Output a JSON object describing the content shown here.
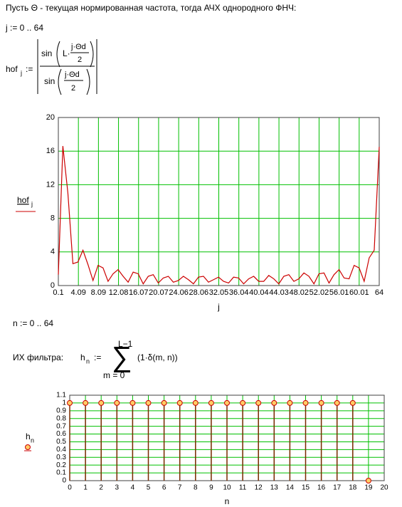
{
  "header": {
    "text": "Пусть Θ - текущая нормированная частота, тогда АЧХ однородного ФНЧ:"
  },
  "range_j": "j := 0 .. 64",
  "formula_hof": {
    "lhs": "hof",
    "lhs_sub": "j",
    "assign": ":=",
    "num_fn": "sin",
    "num_arg_left": "L·",
    "num_frac_top": "j·Θd",
    "num_frac_bottom": "2",
    "den_fn": "sin",
    "den_frac_top": "j·Θd",
    "den_frac_bottom": "2"
  },
  "range_n": "n := 0 .. 64",
  "ir_label": "ИХ фильтра:",
  "formula_h": {
    "lhs": "h",
    "lhs_sub": "n",
    "assign": ":=",
    "sum_top": "L−1",
    "sum_sign": "∑",
    "sum_bottom": "m = 0",
    "body": "(1·δ(m, n))"
  },
  "chart_data": [
    {
      "type": "line",
      "x_label": "j",
      "x": [
        0.1,
        1,
        2,
        3,
        4,
        5,
        6,
        7,
        8,
        9,
        10,
        11,
        12,
        13,
        14,
        15,
        16,
        17,
        18,
        19,
        20,
        21,
        22,
        23,
        24,
        25,
        26,
        27,
        28,
        29,
        30,
        31,
        32,
        33,
        34,
        35,
        36,
        37,
        38,
        39,
        40,
        41,
        42,
        43,
        44,
        45,
        46,
        47,
        48,
        49,
        50,
        51,
        52,
        53,
        54,
        55,
        56,
        57,
        58,
        59,
        60,
        61,
        62,
        63,
        64
      ],
      "series": [
        {
          "name": "hof",
          "name_sub": "j",
          "color": "#cc0000",
          "values": [
            1.3,
            16.6,
            11,
            2.6,
            2.8,
            4.2,
            2.5,
            0.6,
            2.4,
            2.1,
            0.5,
            1.4,
            1.9,
            1.1,
            0.4,
            1.6,
            1.4,
            0.2,
            1.1,
            1.3,
            0.3,
            0.9,
            1.1,
            0.4,
            0.6,
            1.1,
            0.7,
            0.2,
            1.0,
            1.1,
            0.4,
            0.7,
            1.0,
            0.5,
            0.3,
            1.0,
            0.9,
            0.2,
            0.8,
            1.1,
            0.5,
            0.5,
            1.2,
            0.8,
            0.2,
            1.1,
            1.3,
            0.5,
            0.8,
            1.5,
            1.1,
            0.2,
            1.4,
            1.5,
            0.3,
            1.3,
            1.9,
            0.9,
            0.8,
            2.4,
            2.1,
            0.5,
            3.3,
            4.2,
            16.5
          ]
        }
      ],
      "xlim": [
        0.1,
        64
      ],
      "xticks": [
        0.1,
        {
          "value": 4.09375,
          "label": "4.09"
        },
        {
          "value": 8.0875,
          "label": "8.09"
        },
        {
          "value": 12.08125,
          "label": "12.08"
        },
        {
          "value": 16.075,
          "label": "16.07"
        },
        {
          "value": 20.06875,
          "label": "20.07"
        },
        {
          "value": 24.0625,
          "label": "24.06"
        },
        {
          "value": 28.05625,
          "label": "28.06"
        },
        {
          "value": 32.05,
          "label": "32.05"
        },
        {
          "value": 36.04375,
          "label": "36.04"
        },
        {
          "value": 40.0375,
          "label": "40.04"
        },
        {
          "value": 44.03125,
          "label": "44.03"
        },
        {
          "value": 48.025,
          "label": "48.02"
        },
        {
          "value": 52.01875,
          "label": "52.02"
        },
        {
          "value": 56.0125,
          "label": "56.01"
        },
        {
          "value": 60.00625,
          "label": "60.01"
        },
        64
      ],
      "ylim": [
        0,
        20
      ],
      "yticks": [
        0,
        4,
        8,
        12,
        16,
        20
      ],
      "grid": true,
      "grid_color": "#00c000"
    },
    {
      "type": "stem",
      "x_label": "n",
      "x": [
        0,
        1,
        2,
        3,
        4,
        5,
        6,
        7,
        8,
        9,
        10,
        11,
        12,
        13,
        14,
        15,
        16,
        17,
        18,
        19
      ],
      "series": [
        {
          "name": "h",
          "name_sub": "n",
          "color": "#cc0000",
          "marker_fill": "#ffcc66",
          "values": [
            1,
            1,
            1,
            1,
            1,
            1,
            1,
            1,
            1,
            1,
            1,
            1,
            1,
            1,
            1,
            1,
            1,
            1,
            1,
            0
          ]
        }
      ],
      "xlim": [
        0,
        20
      ],
      "xticks": [
        0,
        1,
        2,
        3,
        4,
        5,
        6,
        7,
        8,
        9,
        10,
        11,
        12,
        13,
        14,
        15,
        16,
        17,
        18,
        19,
        20
      ],
      "ylim": [
        0,
        1.1
      ],
      "yticks": [
        0,
        0.1,
        0.2,
        0.3,
        0.4,
        0.5,
        0.6,
        0.7,
        0.8,
        0.9,
        1,
        1.1
      ],
      "grid": true,
      "grid_color": "#00c000"
    }
  ]
}
